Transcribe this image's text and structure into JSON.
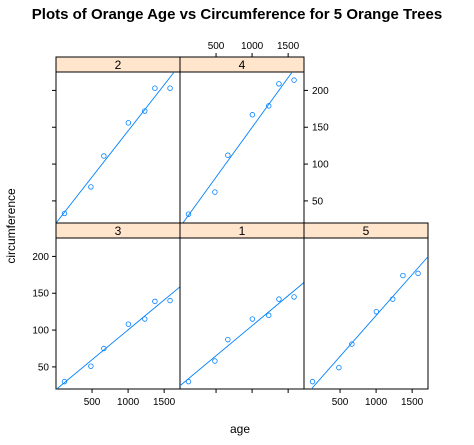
{
  "title": "Plots of Orange Age vs Circumference for 5 Orange Trees",
  "colors": {
    "strip": "#ffe5cc",
    "points": "#0080ff",
    "line": "#0080ff"
  },
  "chart_data": {
    "type": "scatter",
    "title": "Plots of Orange Age vs Circumference for 5 Orange Trees",
    "xlabel": "age",
    "ylabel": "circumference",
    "xlim": [
      0,
      1720
    ],
    "ylim": [
      20,
      225
    ],
    "x_ticks": [
      500,
      1000,
      1500
    ],
    "y_ticks": [
      50,
      100,
      150,
      200
    ],
    "layout": {
      "columns": 3,
      "rows": 2,
      "top_row": [
        "2",
        "4"
      ],
      "bottom_row": [
        "3",
        "1",
        "5"
      ]
    },
    "fit": "least-squares line per panel",
    "panels": [
      {
        "tree": "2",
        "x": [
          118,
          484,
          664,
          1004,
          1231,
          1372,
          1582
        ],
        "y": [
          33,
          69,
          111,
          156,
          172,
          203,
          203
        ]
      },
      {
        "tree": "4",
        "x": [
          118,
          484,
          664,
          1004,
          1231,
          1372,
          1582
        ],
        "y": [
          32,
          62,
          112,
          167,
          179,
          209,
          214
        ]
      },
      {
        "tree": "3",
        "x": [
          118,
          484,
          664,
          1004,
          1231,
          1372,
          1582
        ],
        "y": [
          30,
          51,
          75,
          108,
          115,
          139,
          140
        ]
      },
      {
        "tree": "1",
        "x": [
          118,
          484,
          664,
          1004,
          1231,
          1372,
          1582
        ],
        "y": [
          30,
          58,
          87,
          115,
          120,
          142,
          145
        ]
      },
      {
        "tree": "5",
        "x": [
          118,
          484,
          664,
          1004,
          1231,
          1372,
          1582
        ],
        "y": [
          30,
          49,
          81,
          125,
          142,
          174,
          177
        ]
      }
    ]
  }
}
